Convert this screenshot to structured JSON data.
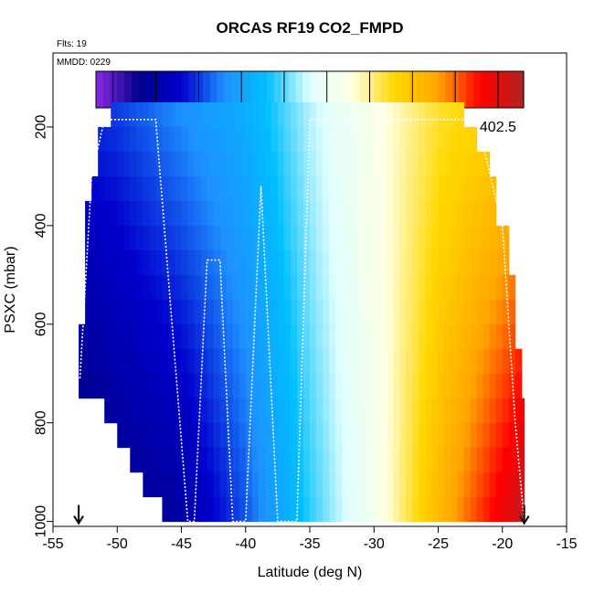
{
  "flts_label": "Flts: 19",
  "mmdd_label": "MMDD: 0229",
  "chart_data": {
    "type": "heatmap",
    "title": "ORCAS RF19 CO2_FMPD",
    "xlabel": "Latitude (deg N)",
    "ylabel": "PSXC (mbar)",
    "xlim": [
      -55,
      -15
    ],
    "ylim": [
      1010,
      50
    ],
    "y_inverted": true,
    "x_ticks": [
      -55,
      -50,
      -45,
      -40,
      -35,
      -30,
      -25,
      -20,
      -15
    ],
    "y_ticks": [
      200,
      400,
      600,
      800,
      1000
    ],
    "colorbar": {
      "range": [
        397.8,
        402.8
      ],
      "ticks": [
        398.5,
        399.5,
        400.5,
        401.5,
        402.5
      ],
      "colors": [
        "#8a2be2",
        "#00008b",
        "#0000cd",
        "#1e90ff",
        "#00bfff",
        "#e0ffff",
        "#ffffe0",
        "#ffd700",
        "#ffa500",
        "#ff0000",
        "#b22222"
      ]
    },
    "levels_mbar": [
      175,
      225,
      275,
      325,
      375,
      425,
      475,
      525,
      575,
      625,
      675,
      725,
      775,
      825,
      875,
      925,
      975
    ],
    "level_extent_lat": [
      [
        -50.5,
        -23.0
      ],
      [
        -51.5,
        -22.0
      ],
      [
        -51.5,
        -21.0
      ],
      [
        -52.0,
        -20.5
      ],
      [
        -52.5,
        -20.5
      ],
      [
        -52.5,
        -19.5
      ],
      [
        -52.5,
        -19.5
      ],
      [
        -52.5,
        -19.0
      ],
      [
        -52.5,
        -19.0
      ],
      [
        -53.0,
        -19.0
      ],
      [
        -53.0,
        -18.5
      ],
      [
        -53.0,
        -18.5
      ],
      [
        -51.0,
        -18.3
      ],
      [
        -50.0,
        -18.3
      ],
      [
        -49.0,
        -18.3
      ],
      [
        -48.0,
        -18.3
      ],
      [
        -46.5,
        -18.3
      ]
    ],
    "co2_profile_by_latitude": {
      "lat": [
        -54,
        -50,
        -45,
        -40,
        -35,
        -30,
        -25,
        -20,
        -18
      ],
      "upper_troposphere": [
        398.9,
        399.0,
        399.3,
        399.6,
        400.2,
        400.7,
        401.2,
        401.4,
        401.6
      ],
      "lower_troposphere": [
        398.0,
        398.3,
        398.5,
        399.1,
        399.9,
        400.6,
        401.6,
        402.4,
        402.7
      ]
    },
    "flight_track": {
      "lat": [
        -52.9,
        -52.0,
        -51.0,
        -47.0,
        -44.5,
        -44.0,
        -43.0,
        -42.5,
        -42.0,
        -41.0,
        -40.5,
        -40.0,
        -38.8,
        -37.5,
        -37.0,
        -36.0,
        -35.0,
        -22.0,
        -20.0,
        -19.0,
        -18.3
      ],
      "pressure_mbar": [
        710,
        300,
        185,
        185,
        1000,
        1000,
        470,
        470,
        470,
        1000,
        1000,
        1000,
        320,
        1000,
        1000,
        1000,
        185,
        185,
        400,
        800,
        1000
      ]
    },
    "markers": {
      "lat": [
        -53.0,
        -18.3
      ],
      "pressure_mbar": [
        1000,
        1000
      ]
    }
  }
}
